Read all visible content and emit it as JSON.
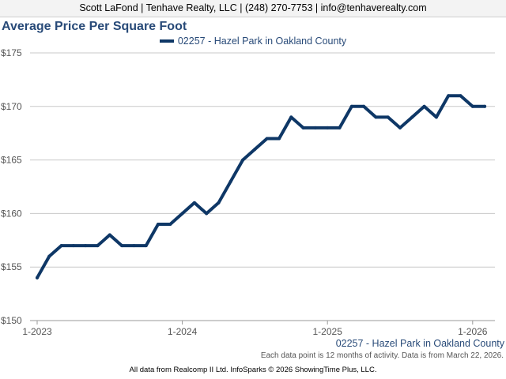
{
  "header": {
    "contact": "Scott LaFond | Tenhave Realty, LLC | (248) 270-7753 | info@tenhaverealty.com"
  },
  "footer": {
    "series_label": "02257 - Hazel Park in Oakland County",
    "note": "Each data point is 12 months of activity. Data is from March 22, 2026.",
    "credit": "All data from Realcomp II Ltd. InfoSparks © 2026 ShowingTime Plus, LLC."
  },
  "colors": {
    "series": "#0e3766",
    "title": "#284a78",
    "grid": "#c8c8c8"
  },
  "chart_data": {
    "type": "line",
    "title": "Average Price Per Square Foot",
    "xlabel": "",
    "ylabel": "",
    "x_ticks": [
      "1-2023",
      "1-2024",
      "1-2025",
      "1-2026"
    ],
    "y_ticks": [
      "$150",
      "$155",
      "$160",
      "$165",
      "$170",
      "$175"
    ],
    "y_tick_values": [
      150,
      155,
      160,
      165,
      170,
      175
    ],
    "ylim": [
      150,
      175
    ],
    "xlim": [
      "2023-01",
      "2026-02"
    ],
    "grid": true,
    "legend": "top-center",
    "series": [
      {
        "name": "02257 - Hazel Park in Oakland County",
        "x": [
          "2023-01",
          "2023-02",
          "2023-03",
          "2023-04",
          "2023-05",
          "2023-06",
          "2023-07",
          "2023-08",
          "2023-09",
          "2023-10",
          "2023-11",
          "2023-12",
          "2024-01",
          "2024-02",
          "2024-03",
          "2024-04",
          "2024-05",
          "2024-06",
          "2024-07",
          "2024-08",
          "2024-09",
          "2024-10",
          "2024-11",
          "2024-12",
          "2025-01",
          "2025-02",
          "2025-03",
          "2025-04",
          "2025-05",
          "2025-06",
          "2025-07",
          "2025-08",
          "2025-09",
          "2025-10",
          "2025-11",
          "2025-12",
          "2026-01",
          "2026-02"
        ],
        "values": [
          154,
          156,
          157,
          157,
          157,
          157,
          158,
          157,
          157,
          157,
          159,
          159,
          160,
          161,
          160,
          161,
          163,
          165,
          166,
          167,
          167,
          169,
          168,
          168,
          168,
          168,
          170,
          170,
          169,
          169,
          168,
          169,
          170,
          169,
          171,
          171,
          170,
          170
        ]
      }
    ]
  }
}
